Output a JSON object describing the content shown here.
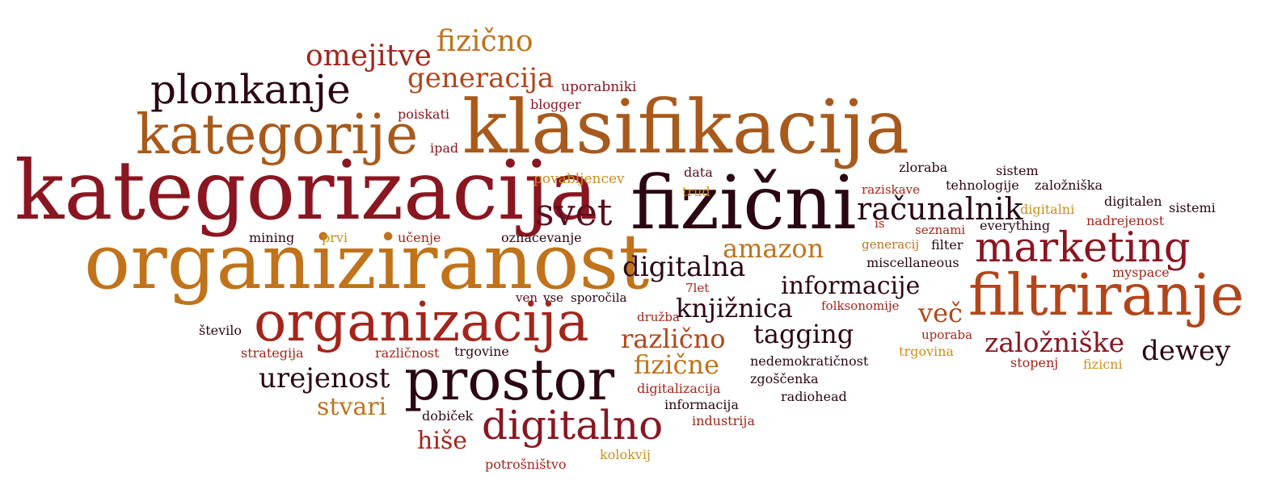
{
  "palette": {
    "very_dark": "#2b0712",
    "dark_maroon": "#5c0f1f",
    "dark_red": "#8a1621",
    "red": "#a3251b",
    "rust": "#b2461b",
    "brown_orange": "#a85a1c",
    "orange": "#c0731a",
    "gold": "#cc8e1c"
  },
  "words": [
    {
      "text": "kategorizacija",
      "color": "dark_red"
    },
    {
      "text": "organiziranost",
      "color": "orange"
    },
    {
      "text": "klasifikacija",
      "color": "brown_orange"
    },
    {
      "text": "fizični",
      "color": "very_dark"
    },
    {
      "text": "kategorije",
      "color": "brown_orange"
    },
    {
      "text": "organizacija",
      "color": "red"
    },
    {
      "text": "filtriranje",
      "color": "rust"
    },
    {
      "text": "prostor",
      "color": "very_dark"
    },
    {
      "text": "plonkanje",
      "color": "very_dark"
    },
    {
      "text": "marketing",
      "color": "dark_red"
    },
    {
      "text": "digitalno",
      "color": "dark_red"
    },
    {
      "text": "svet",
      "color": "dark_maroon"
    },
    {
      "text": "omejitve",
      "color": "red"
    },
    {
      "text": "fizično",
      "color": "orange"
    },
    {
      "text": "generacija",
      "color": "rust"
    },
    {
      "text": "računalnik",
      "color": "very_dark"
    },
    {
      "text": "amazon",
      "color": "orange"
    },
    {
      "text": "digitalna",
      "color": "very_dark"
    },
    {
      "text": "informacije",
      "color": "very_dark"
    },
    {
      "text": "knjižnica",
      "color": "very_dark"
    },
    {
      "text": "več",
      "color": "rust"
    },
    {
      "text": "tagging",
      "color": "very_dark"
    },
    {
      "text": "različno",
      "color": "rust"
    },
    {
      "text": "založniške",
      "color": "dark_red"
    },
    {
      "text": "dewey",
      "color": "very_dark"
    },
    {
      "text": "urejenost",
      "color": "very_dark"
    },
    {
      "text": "fizične",
      "color": "orange"
    },
    {
      "text": "stvari",
      "color": "orange"
    },
    {
      "text": "hiše",
      "color": "red"
    },
    {
      "text": "uporabniki",
      "color": "dark_red"
    },
    {
      "text": "blogger",
      "color": "dark_red"
    },
    {
      "text": "poiskati",
      "color": "dark_red"
    },
    {
      "text": "ipad",
      "color": "dark_red"
    },
    {
      "text": "povabljencev",
      "color": "gold"
    },
    {
      "text": "data",
      "color": "dark_maroon"
    },
    {
      "text": "trud",
      "color": "gold"
    },
    {
      "text": "mining",
      "color": "very_dark"
    },
    {
      "text": "prvi",
      "color": "gold"
    },
    {
      "text": "učenje",
      "color": "red"
    },
    {
      "text": "oznacevanje",
      "color": "very_dark"
    },
    {
      "text": "zloraba",
      "color": "very_dark"
    },
    {
      "text": "sistem",
      "color": "very_dark"
    },
    {
      "text": "tehnologije",
      "color": "very_dark"
    },
    {
      "text": "založniška",
      "color": "very_dark"
    },
    {
      "text": "raziskave",
      "color": "red"
    },
    {
      "text": "digitalni",
      "color": "gold"
    },
    {
      "text": "digitalen",
      "color": "very_dark"
    },
    {
      "text": "sistemi",
      "color": "very_dark"
    },
    {
      "text": "nadrejenost",
      "color": "red"
    },
    {
      "text": "is",
      "color": "red"
    },
    {
      "text": "seznami",
      "color": "red"
    },
    {
      "text": "everything",
      "color": "very_dark"
    },
    {
      "text": "generacij",
      "color": "orange"
    },
    {
      "text": "filter",
      "color": "very_dark"
    },
    {
      "text": "miscellaneous",
      "color": "very_dark"
    },
    {
      "text": "myspace",
      "color": "red"
    },
    {
      "text": "7let",
      "color": "red"
    },
    {
      "text": "ven",
      "color": "dark_maroon"
    },
    {
      "text": "vse",
      "color": "very_dark"
    },
    {
      "text": "sporočila",
      "color": "very_dark"
    },
    {
      "text": "folksonomije",
      "color": "red"
    },
    {
      "text": "družba",
      "color": "red"
    },
    {
      "text": "število",
      "color": "very_dark"
    },
    {
      "text": "strategija",
      "color": "red"
    },
    {
      "text": "različnost",
      "color": "red"
    },
    {
      "text": "trgovine",
      "color": "very_dark"
    },
    {
      "text": "uporaba",
      "color": "red"
    },
    {
      "text": "trgovina",
      "color": "gold"
    },
    {
      "text": "stopenj",
      "color": "red"
    },
    {
      "text": "fizicni",
      "color": "gold"
    },
    {
      "text": "nedemokratičnost",
      "color": "very_dark"
    },
    {
      "text": "zgoščenka",
      "color": "very_dark"
    },
    {
      "text": "radiohead",
      "color": "very_dark"
    },
    {
      "text": "digitalizacija",
      "color": "red"
    },
    {
      "text": "informacija",
      "color": "very_dark"
    },
    {
      "text": "industrija",
      "color": "red"
    },
    {
      "text": "dobiček",
      "color": "very_dark"
    },
    {
      "text": "kolokvij",
      "color": "gold"
    },
    {
      "text": "potrošništvo",
      "color": "red"
    }
  ]
}
